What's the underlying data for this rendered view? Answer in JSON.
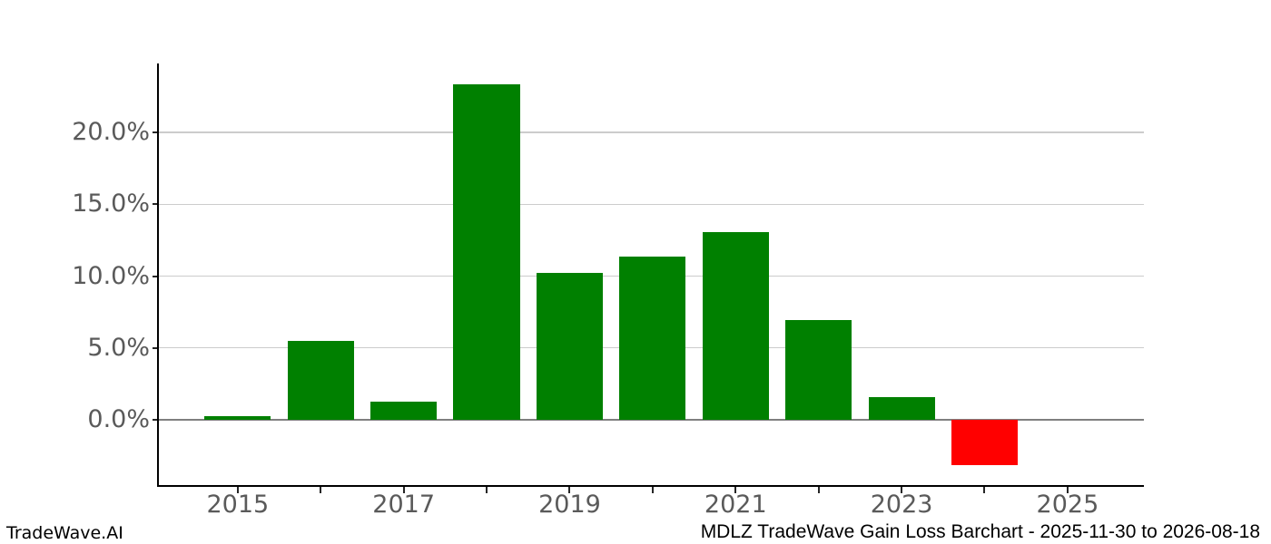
{
  "footer": {
    "left": "TradeWave.AI",
    "right": "MDLZ TradeWave Gain Loss Barchart - 2025-11-30 to 2026-08-18"
  },
  "chart_data": {
    "type": "bar",
    "title": "MDLZ TradeWave Gain Loss Barchart - 2025-11-30 to 2026-08-18",
    "xlabel": "",
    "ylabel": "",
    "x": [
      2015,
      2016,
      2017,
      2018,
      2019,
      2020,
      2021,
      2022,
      2023,
      2024
    ],
    "values": [
      0.25,
      5.49,
      1.26,
      23.36,
      10.23,
      11.36,
      13.07,
      6.94,
      1.58,
      -3.16
    ],
    "unit": "%",
    "bar_width_years": 0.8,
    "colors": {
      "positive": "#008000",
      "negative": "#ff0000"
    },
    "xlim": [
      2014.05,
      2025.92
    ],
    "ylim": [
      -4.55,
      24.81
    ],
    "grid": true,
    "legend": false,
    "gridline_color": "#cccccc",
    "zero_line_color": "#7f7f7f",
    "tick_label_color": "#5a5a5a",
    "yticks": [
      {
        "value": 0,
        "label": "0.0%"
      },
      {
        "value": 5,
        "label": "5.0%"
      },
      {
        "value": 10,
        "label": "10.0%"
      },
      {
        "value": 15,
        "label": "15.0%"
      },
      {
        "value": 20,
        "label": "20.0%"
      }
    ],
    "xticks": [
      {
        "value": 2015,
        "label": "2015"
      },
      {
        "value": 2016,
        "label": ""
      },
      {
        "value": 2017,
        "label": "2017"
      },
      {
        "value": 2018,
        "label": ""
      },
      {
        "value": 2019,
        "label": "2019"
      },
      {
        "value": 2020,
        "label": ""
      },
      {
        "value": 2021,
        "label": "2021"
      },
      {
        "value": 2022,
        "label": ""
      },
      {
        "value": 2023,
        "label": "2023"
      },
      {
        "value": 2024,
        "label": ""
      },
      {
        "value": 2025,
        "label": "2025"
      }
    ]
  }
}
